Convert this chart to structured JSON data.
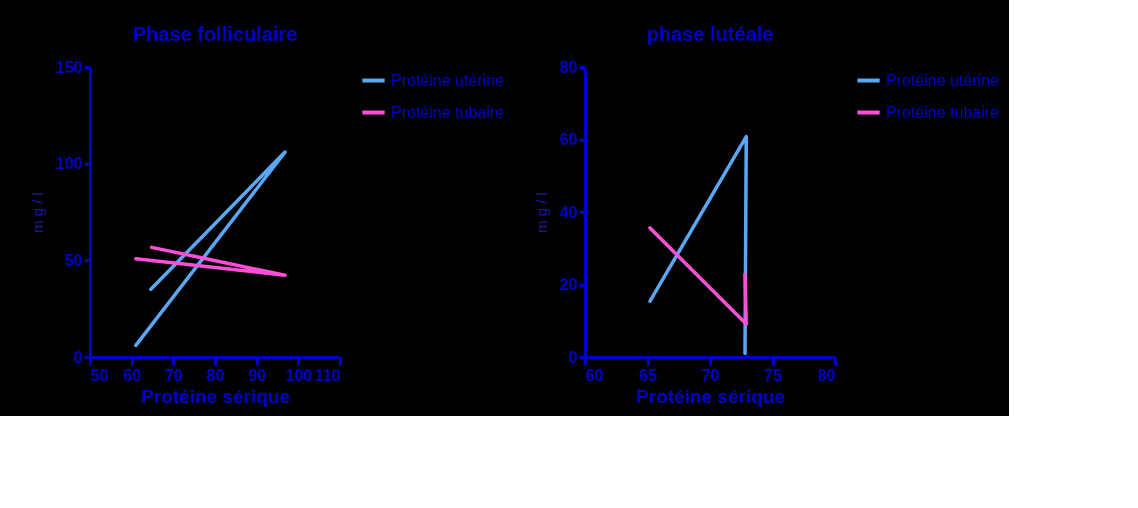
{
  "chart_data": [
    {
      "type": "line",
      "title": "Phase folliculaire",
      "xlabel": "Protéine sérique",
      "ylabel": "m g / l",
      "xlim": [
        50,
        110
      ],
      "xticks": [
        50,
        60,
        70,
        80,
        90,
        100,
        110
      ],
      "ylim": [
        0,
        150
      ],
      "yticks": [
        0,
        50,
        100,
        150
      ],
      "grid": false,
      "legend": "top right",
      "series": [
        {
          "name": "Protéine utérine",
          "color": "#5aa8f5",
          "x": [
            64.6,
            96.8,
            61
          ],
          "values": [
            35,
            106,
            6
          ]
        },
        {
          "name": "Protéine tubaire",
          "color": "#ff4fd8",
          "x": [
            64.8,
            96.8,
            61
          ],
          "values": [
            56.7,
            42.3,
            50.8
          ]
        }
      ]
    },
    {
      "type": "line",
      "title": "phase lutéale",
      "xlabel": "Protéine sérique",
      "ylabel": "m g / l",
      "xlim": [
        60,
        80
      ],
      "xticks": [
        60,
        65,
        70,
        75,
        80
      ],
      "ylim": [
        0,
        80
      ],
      "yticks": [
        0,
        20,
        40,
        60,
        80
      ],
      "grid": false,
      "legend": "top right",
      "series": [
        {
          "name": "Protéine utérine",
          "color": "#5aa8f5",
          "x": [
            65.2,
            72.9,
            72.8
          ],
          "values": [
            15.4,
            60.8,
            1
          ]
        },
        {
          "name": "Protéine tubaire",
          "color": "#ff4fd8",
          "x": [
            65.2,
            72.9,
            72.8
          ],
          "values": [
            35.6,
            9.1,
            22.8
          ]
        }
      ]
    }
  ]
}
